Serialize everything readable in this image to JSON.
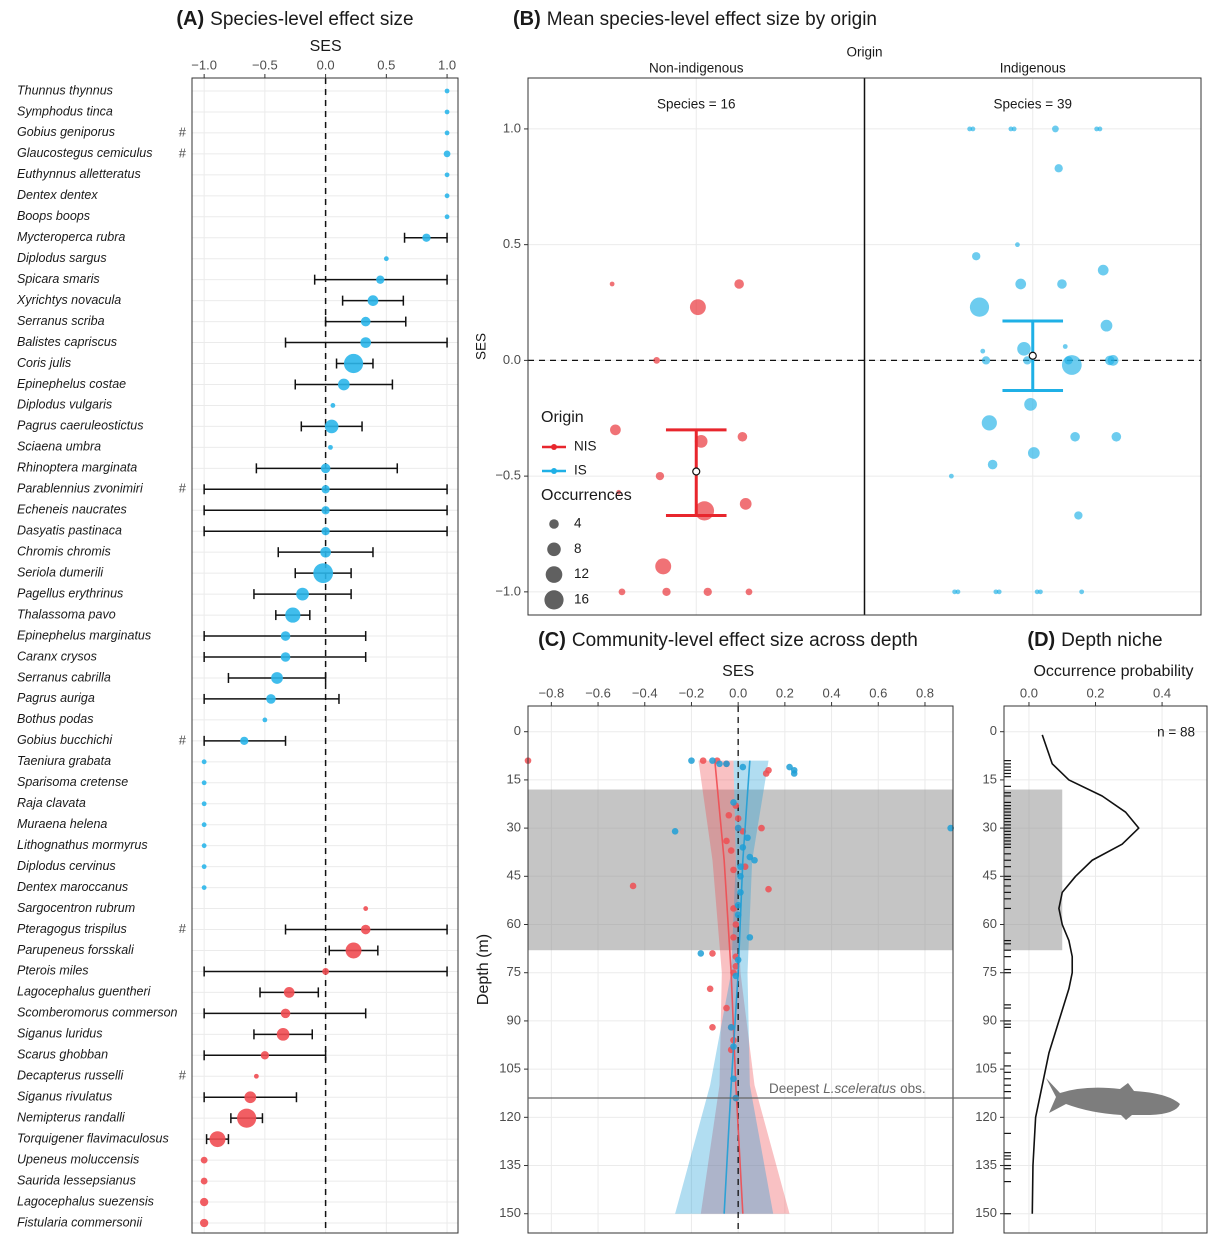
{
  "chart_data": [
    {
      "type": "dot",
      "label": "(A)",
      "title": "Species-level effect size",
      "x_label": "SES",
      "xlim": [
        -1.1,
        1.09
      ],
      "xticks": [
        {
          "value": -1,
          "label": "−1.0"
        },
        {
          "value": -0.5,
          "label": "−0.5"
        },
        {
          "value": 0,
          "label": "0.0"
        },
        0.5,
        {
          "value": 1,
          "label": "1.0"
        }
      ],
      "reference_line": 0,
      "categories": [
        "Thunnus thynnus",
        "Symphodus tinca",
        "Gobius geniporus",
        "Glaucostegus cemiculus",
        "Euthynnus alletteratus",
        "Dentex dentex",
        "Boops boops",
        "Mycteroperca rubra",
        "Diplodus sargus",
        "Spicara smaris",
        "Xyrichtys novacula",
        "Serranus scriba",
        "Balistes capriscus",
        "Coris julis",
        "Epinephelus costae",
        "Diplodus vulgaris",
        "Pagrus caeruleostictus",
        "Sciaena umbra",
        "Rhinoptera marginata",
        "Parablennius zvonimiri",
        "Echeneis naucrates",
        "Dasyatis pastinaca",
        "Chromis chromis",
        "Seriola dumerili",
        "Pagellus erythrinus",
        "Thalassoma pavo",
        "Epinephelus marginatus",
        "Caranx crysos",
        "Serranus cabrilla",
        "Pagrus auriga",
        "Bothus podas",
        "Gobius bucchichi",
        "Taeniura grabata",
        "Sparisoma cretense",
        "Raja clavata",
        "Muraena helena",
        "Lithognathus mormyrus",
        "Diplodus cervinus",
        "Dentex maroccanus",
        "Sargocentron rubrum",
        "Pteragogus trispilus",
        "Parupeneus forsskali",
        "Pterois miles",
        "Lagocephalus guentheri",
        "Scomberomorus commerson",
        "Siganus luridus",
        "Scarus ghobban",
        "Decapterus russelli",
        "Siganus rivulatus",
        "Nemipterus randalli",
        "Torquigener flavimaculosus",
        "Upeneus moluccensis",
        "Saurida lessepsianus",
        "Lagocephalus suezensis",
        "Fistularia commersonii"
      ],
      "flags": [
        null,
        null,
        "#",
        "#",
        null,
        null,
        null,
        null,
        null,
        null,
        null,
        null,
        null,
        null,
        null,
        null,
        null,
        null,
        null,
        "#",
        null,
        null,
        null,
        null,
        null,
        null,
        null,
        null,
        null,
        null,
        null,
        "#",
        null,
        null,
        null,
        null,
        null,
        null,
        null,
        null,
        "#",
        null,
        null,
        null,
        null,
        null,
        null,
        "#",
        null,
        null,
        null,
        null,
        null,
        null,
        null
      ],
      "values": [
        1,
        1,
        1,
        1,
        1,
        1,
        1,
        0.83,
        0.5,
        0.45,
        0.39,
        0.33,
        0.33,
        0.23,
        0.15,
        0.06,
        0.05,
        0.04,
        0,
        0,
        0,
        0,
        0,
        -0.02,
        -0.19,
        -0.27,
        -0.33,
        -0.33,
        -0.4,
        -0.45,
        -0.5,
        -0.67,
        -1,
        -1,
        -1,
        -1,
        -1,
        -1,
        -1,
        0.33,
        0.33,
        0.23,
        0,
        -0.3,
        -0.33,
        -0.35,
        -0.5,
        -0.57,
        -0.62,
        -0.65,
        -0.89,
        -1,
        -1,
        -1,
        -1
      ],
      "lower": [
        null,
        null,
        null,
        null,
        null,
        null,
        null,
        0.65,
        null,
        -0.09,
        0.14,
        0,
        -0.33,
        0.09,
        -0.25,
        null,
        -0.2,
        null,
        -0.57,
        -1,
        -1,
        -1,
        -0.39,
        -0.25,
        -0.59,
        -0.41,
        -1,
        -1,
        -0.8,
        -1,
        null,
        -1,
        null,
        null,
        null,
        null,
        null,
        null,
        null,
        null,
        -0.33,
        0.03,
        -1,
        -0.54,
        -1,
        -0.59,
        -1,
        null,
        -1,
        -0.78,
        -0.98,
        null,
        null,
        null,
        null
      ],
      "upper": [
        null,
        null,
        null,
        null,
        null,
        null,
        null,
        1,
        null,
        1,
        0.64,
        0.66,
        1,
        0.39,
        0.55,
        null,
        0.3,
        null,
        0.59,
        1,
        1,
        1,
        0.39,
        0.21,
        0.21,
        -0.13,
        0.33,
        0.33,
        0,
        0.11,
        null,
        -0.33,
        null,
        null,
        null,
        null,
        null,
        null,
        null,
        null,
        1,
        0.43,
        1,
        -0.06,
        0.33,
        -0.11,
        0,
        null,
        -0.24,
        -0.52,
        -0.8,
        null,
        null,
        null,
        null
      ],
      "sizes": [
        1,
        1,
        1,
        2,
        1,
        1,
        1,
        3,
        1,
        3,
        5,
        4,
        5,
        16,
        6,
        1,
        8,
        1,
        4,
        3,
        3,
        3,
        5,
        17,
        7,
        10,
        4,
        4,
        6,
        4,
        1,
        3,
        1,
        1,
        1,
        1,
        1,
        1,
        1,
        1,
        4,
        11,
        2,
        5,
        4,
        7,
        3,
        1,
        6,
        16,
        11,
        2,
        2,
        3,
        3
      ],
      "colors": [
        "#2bb6ea",
        "#2bb6ea",
        "#2bb6ea",
        "#2bb6ea",
        "#2bb6ea",
        "#2bb6ea",
        "#2bb6ea",
        "#2bb6ea",
        "#2bb6ea",
        "#2bb6ea",
        "#2bb6ea",
        "#2bb6ea",
        "#2bb6ea",
        "#2bb6ea",
        "#2bb6ea",
        "#2bb6ea",
        "#2bb6ea",
        "#2bb6ea",
        "#2bb6ea",
        "#2bb6ea",
        "#2bb6ea",
        "#2bb6ea",
        "#2bb6ea",
        "#2bb6ea",
        "#2bb6ea",
        "#2bb6ea",
        "#2bb6ea",
        "#2bb6ea",
        "#2bb6ea",
        "#2bb6ea",
        "#2bb6ea",
        "#2bb6ea",
        "#2bb6ea",
        "#2bb6ea",
        "#2bb6ea",
        "#2bb6ea",
        "#2bb6ea",
        "#2bb6ea",
        "#2bb6ea",
        "#ef4d52",
        "#ef4d52",
        "#ef4d52",
        "#ef4d52",
        "#ef4d52",
        "#ef4d52",
        "#ef4d52",
        "#ef4d52",
        "#ef4d52",
        "#ef4d52",
        "#ef4d52",
        "#ef4d52",
        "#ef4d52",
        "#ef4d52",
        "#ef4d52",
        "#ef4d52"
      ]
    },
    {
      "type": "strip",
      "label": "(B)",
      "title": "Mean species-level effect size by origin",
      "facet_title": "Origin",
      "categories": [
        "Non-indigenous",
        "Indigenous"
      ],
      "y_label": "SES",
      "ylim": [
        -1.1,
        1.22
      ],
      "yticks": [
        {
          "value": -1,
          "label": "−1.0"
        },
        {
          "value": -0.5,
          "label": "−0.5"
        },
        {
          "value": 0,
          "label": "0.0"
        },
        0.5,
        {
          "value": 1,
          "label": "1.0"
        }
      ],
      "reference_line": 0,
      "series": [
        {
          "name": "NIS",
          "color": "#e8262d",
          "label": "Species = 16",
          "values": [
            0.33,
            0.33,
            0.23,
            0,
            -0.3,
            -0.33,
            -0.35,
            -0.5,
            -0.57,
            -0.62,
            -0.65,
            -0.89,
            -1,
            -1,
            -1,
            -1
          ],
          "sizes": [
            1,
            4,
            11,
            2,
            5,
            4,
            7,
            3,
            1,
            6,
            16,
            11,
            2,
            2,
            3,
            3
          ],
          "mean": -0.48,
          "ci": [
            -0.67,
            -0.3
          ]
        },
        {
          "name": "IS",
          "color": "#1fb0e6",
          "label": "Species = 39",
          "values": [
            1,
            1,
            1,
            1,
            1,
            1,
            1,
            0.83,
            0.5,
            0.45,
            0.39,
            0.33,
            0.33,
            0.23,
            0.15,
            0.06,
            0.05,
            0.04,
            0,
            0,
            0,
            0,
            0,
            -0.02,
            -0.19,
            -0.27,
            -0.33,
            -0.33,
            -0.4,
            -0.45,
            -0.5,
            -0.67,
            -1,
            -1,
            -1,
            -1,
            -1,
            -1,
            -1
          ],
          "sizes": [
            1,
            1,
            1,
            2,
            1,
            1,
            1,
            3,
            1,
            3,
            5,
            4,
            5,
            16,
            6,
            1,
            8,
            1,
            4,
            3,
            3,
            3,
            5,
            17,
            7,
            10,
            4,
            4,
            6,
            4,
            1,
            3,
            1,
            1,
            1,
            1,
            1,
            1,
            1
          ],
          "mean": 0.02,
          "ci": [
            -0.13,
            0.17
          ]
        }
      ],
      "legend_title": "Origin",
      "size_title": "Occurrences",
      "size_legend": [
        4,
        8,
        12,
        16
      ]
    },
    {
      "type": "scatter",
      "label": "(C)",
      "title": "Community-level effect size across depth",
      "x_label": "SES",
      "y_label": "Depth (m)",
      "xlim": [
        -0.9,
        0.92
      ],
      "xticks": [
        {
          "value": -0.8,
          "label": "−0.8"
        },
        {
          "value": -0.6,
          "label": "−0.6"
        },
        {
          "value": -0.4,
          "label": "−0.4"
        },
        {
          "value": -0.2,
          "label": "−0.2"
        },
        {
          "value": 0,
          "label": "0.0"
        },
        0.2,
        0.4,
        0.6,
        0.8
      ],
      "ylim": [
        -8,
        156
      ],
      "y_reversed": true,
      "yticks": [
        0,
        15,
        30,
        45,
        60,
        75,
        90,
        105,
        120,
        135,
        150
      ],
      "reference_line": 0,
      "shaded_range": [
        18,
        68
      ],
      "reference_depth": 114,
      "annotation": [
        "Deepest",
        "L.sceleratus",
        "obs."
      ],
      "fit_depth": [
        9,
        40,
        75,
        110,
        150
      ],
      "series": [
        {
          "color": "#ef4d52",
          "x": [
            -0.9,
            -0.15,
            -0.09,
            -0.05,
            0.12,
            0.13,
            -0.01,
            -0.04,
            0,
            0,
            0.1,
            0.02,
            -0.05,
            -0.03,
            0.03,
            -0.02,
            -0.45,
            0.13,
            -0.02,
            -0.01,
            -0.02,
            -0.11,
            -0.01,
            -0.01,
            -0.02,
            -0.12,
            -0.05,
            -0.11,
            -0.03,
            -0.02,
            -0.03,
            -0.01
          ],
          "y": [
            9,
            9,
            9,
            10,
            13,
            12,
            23,
            26,
            27,
            30,
            30,
            31,
            34,
            37,
            42,
            43,
            48,
            49,
            55,
            60,
            64,
            69,
            70,
            73,
            75,
            80,
            86,
            92,
            92,
            96,
            99,
            114
          ],
          "fit": [
            -0.1,
            -0.06,
            -0.03,
            -0.01,
            0.02
          ],
          "fit_lower": [
            -0.17,
            -0.11,
            -0.07,
            -0.08,
            -0.16
          ],
          "fit_upper": [
            -0.02,
            -0.01,
            0.01,
            0.07,
            0.22
          ]
        },
        {
          "color": "#1f9fd6",
          "x": [
            -0.2,
            -0.11,
            -0.08,
            -0.05,
            0.02,
            0.22,
            0.24,
            0.24,
            -0.02,
            0,
            0.91,
            -0.27,
            0.04,
            0.02,
            0.05,
            0.07,
            0.01,
            0.01,
            0.01,
            0,
            0,
            0.05,
            -0.16,
            0,
            -0.01,
            -0.03,
            -0.02,
            -0.02,
            -0.01
          ],
          "y": [
            9,
            9,
            10,
            10,
            11,
            11,
            12,
            13,
            22,
            30,
            30,
            31,
            33,
            36,
            39,
            40,
            42,
            45,
            50,
            54,
            57,
            64,
            69,
            71,
            76,
            92,
            98,
            108,
            114
          ],
          "fit": [
            0.05,
            0.02,
            0,
            -0.03,
            -0.06
          ],
          "fit_lower": [
            -0.02,
            -0.01,
            -0.03,
            -0.12,
            -0.27
          ],
          "fit_upper": [
            0.13,
            0.06,
            0.04,
            0.05,
            0.15
          ]
        }
      ]
    },
    {
      "type": "density",
      "label": "(D)",
      "title": "Depth niche",
      "x_label": "Occurrence probability",
      "xlim": [
        -0.075,
        0.535
      ],
      "xticks": [
        {
          "value": 0,
          "label": "0.0"
        },
        0.2,
        0.4
      ],
      "ylim": [
        -8,
        156
      ],
      "y_reversed": true,
      "yticks": [
        0,
        15,
        30,
        45,
        60,
        75,
        90,
        105,
        120,
        135,
        150
      ],
      "shaded_range": [
        18,
        68
      ],
      "shaded_xmax": 0.1,
      "annotation": "n =  88",
      "density": {
        "depth": [
          1,
          10,
          15,
          20,
          25,
          30,
          35,
          40,
          45,
          50,
          55,
          60,
          65,
          70,
          75,
          80,
          90,
          100,
          110,
          120,
          135,
          150
        ],
        "values": [
          0.04,
          0.07,
          0.12,
          0.22,
          0.29,
          0.33,
          0.28,
          0.19,
          0.14,
          0.1,
          0.09,
          0.1,
          0.12,
          0.13,
          0.13,
          0.12,
          0.09,
          0.06,
          0.04,
          0.02,
          0.012,
          0.01
        ]
      },
      "rug": [
        9,
        10,
        11,
        12,
        13,
        14,
        17,
        19,
        20,
        22,
        23,
        24,
        25,
        26,
        27,
        28,
        29,
        30,
        31,
        32,
        33,
        34,
        35,
        36,
        38,
        40,
        42,
        45,
        46,
        48,
        50,
        52,
        55,
        65,
        66,
        68,
        70,
        74,
        75,
        85,
        86,
        90,
        91,
        92,
        100,
        104,
        106,
        108,
        110,
        112,
        114,
        125,
        131,
        132,
        133,
        135,
        136,
        140,
        150
      ]
    }
  ]
}
